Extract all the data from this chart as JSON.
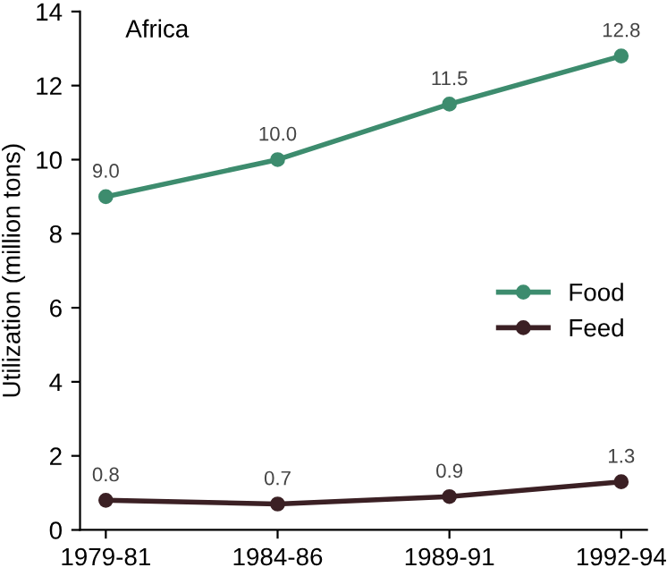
{
  "chart_data": {
    "type": "line",
    "title": "Africa",
    "ylabel": "Utilization (million tons)",
    "categories": [
      "1979-81",
      "1984-86",
      "1989-91",
      "1992-94"
    ],
    "series": [
      {
        "name": "Food",
        "color": "#3d8c6e",
        "values": [
          9.0,
          10.0,
          11.5,
          12.8
        ],
        "value_labels": [
          "9.0",
          "10.0",
          "11.5",
          "12.8"
        ]
      },
      {
        "name": "Feed",
        "color": "#3b2024",
        "values": [
          0.8,
          0.7,
          0.9,
          1.3
        ],
        "value_labels": [
          "0.8",
          "0.7",
          "0.9",
          "1.3"
        ]
      }
    ],
    "ylim": [
      0,
      14
    ],
    "yticks": [
      0,
      2,
      4,
      6,
      8,
      10,
      12,
      14
    ],
    "grid": false,
    "legend": "center right",
    "marker": "circle",
    "line_style": "solid"
  }
}
